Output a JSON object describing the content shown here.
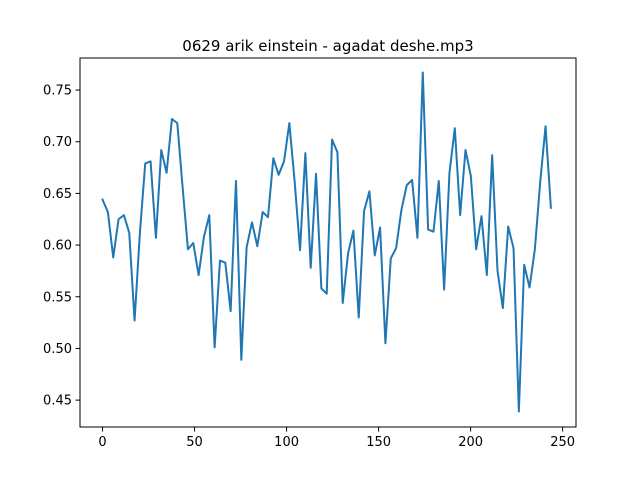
{
  "chart_data": {
    "type": "line",
    "title": "0629 arik einstein - agadat deshe.mp3",
    "xlabel": "",
    "ylabel": "",
    "xlim": [
      -12.25,
      257.25
    ],
    "ylim": [
      0.424,
      0.781
    ],
    "grid": false,
    "line_color": "#1f77b4",
    "x_ticks": [
      0,
      50,
      100,
      150,
      200,
      250
    ],
    "x_tick_labels": [
      "0",
      "50",
      "100",
      "150",
      "200",
      "250"
    ],
    "y_ticks": [
      0.45,
      0.5,
      0.55,
      0.6,
      0.65,
      0.7,
      0.75
    ],
    "y_tick_labels": [
      "0.45",
      "0.50",
      "0.55",
      "0.60",
      "0.65",
      "0.70",
      "0.75"
    ],
    "series": [
      {
        "x": [
          0,
          2.9,
          5.8,
          8.7,
          11.6,
          14.5,
          17.4,
          20.3,
          23.2,
          26.1,
          29,
          31.9,
          34.8,
          37.7,
          40.6,
          43.5,
          46.4,
          49.3,
          52.2,
          55.1,
          58,
          60.9,
          63.8,
          66.7,
          69.6,
          72.5,
          75.4,
          78.3,
          81.2,
          84.1,
          87,
          89.9,
          92.8,
          95.7,
          98.6,
          101.5,
          104.4,
          107.3,
          110.2,
          113.1,
          116,
          118.9,
          121.8,
          124.7,
          127.6,
          130.5,
          133.4,
          136.3,
          139.2,
          142.1,
          145,
          147.9,
          150.8,
          153.7,
          156.6,
          159.5,
          162.4,
          165.3,
          168.2,
          171.1,
          174,
          176.9,
          179.8,
          182.7,
          185.6,
          188.5,
          191.4,
          194.3,
          197.2,
          200.1,
          203,
          205.9,
          208.8,
          211.7,
          214.6,
          217.5,
          220.4,
          223.3,
          226.2,
          229.1,
          232,
          234.9,
          237.8,
          240.7,
          243.6
        ],
        "y": [
          0.644,
          0.632,
          0.588,
          0.625,
          0.629,
          0.612,
          0.527,
          0.612,
          0.679,
          0.681,
          0.607,
          0.692,
          0.67,
          0.722,
          0.718,
          0.656,
          0.596,
          0.602,
          0.571,
          0.608,
          0.629,
          0.501,
          0.585,
          0.583,
          0.536,
          0.662,
          0.489,
          0.598,
          0.622,
          0.599,
          0.632,
          0.627,
          0.684,
          0.668,
          0.681,
          0.718,
          0.661,
          0.595,
          0.689,
          0.578,
          0.669,
          0.558,
          0.553,
          0.702,
          0.69,
          0.544,
          0.592,
          0.614,
          0.53,
          0.633,
          0.652,
          0.59,
          0.617,
          0.505,
          0.587,
          0.597,
          0.634,
          0.658,
          0.663,
          0.607,
          0.767,
          0.615,
          0.613,
          0.662,
          0.557,
          0.67,
          0.713,
          0.629,
          0.692,
          0.667,
          0.596,
          0.628,
          0.571,
          0.687,
          0.575,
          0.539,
          0.618,
          0.597,
          0.439,
          0.581,
          0.559,
          0.596,
          0.661,
          0.715,
          0.636
        ]
      }
    ]
  }
}
